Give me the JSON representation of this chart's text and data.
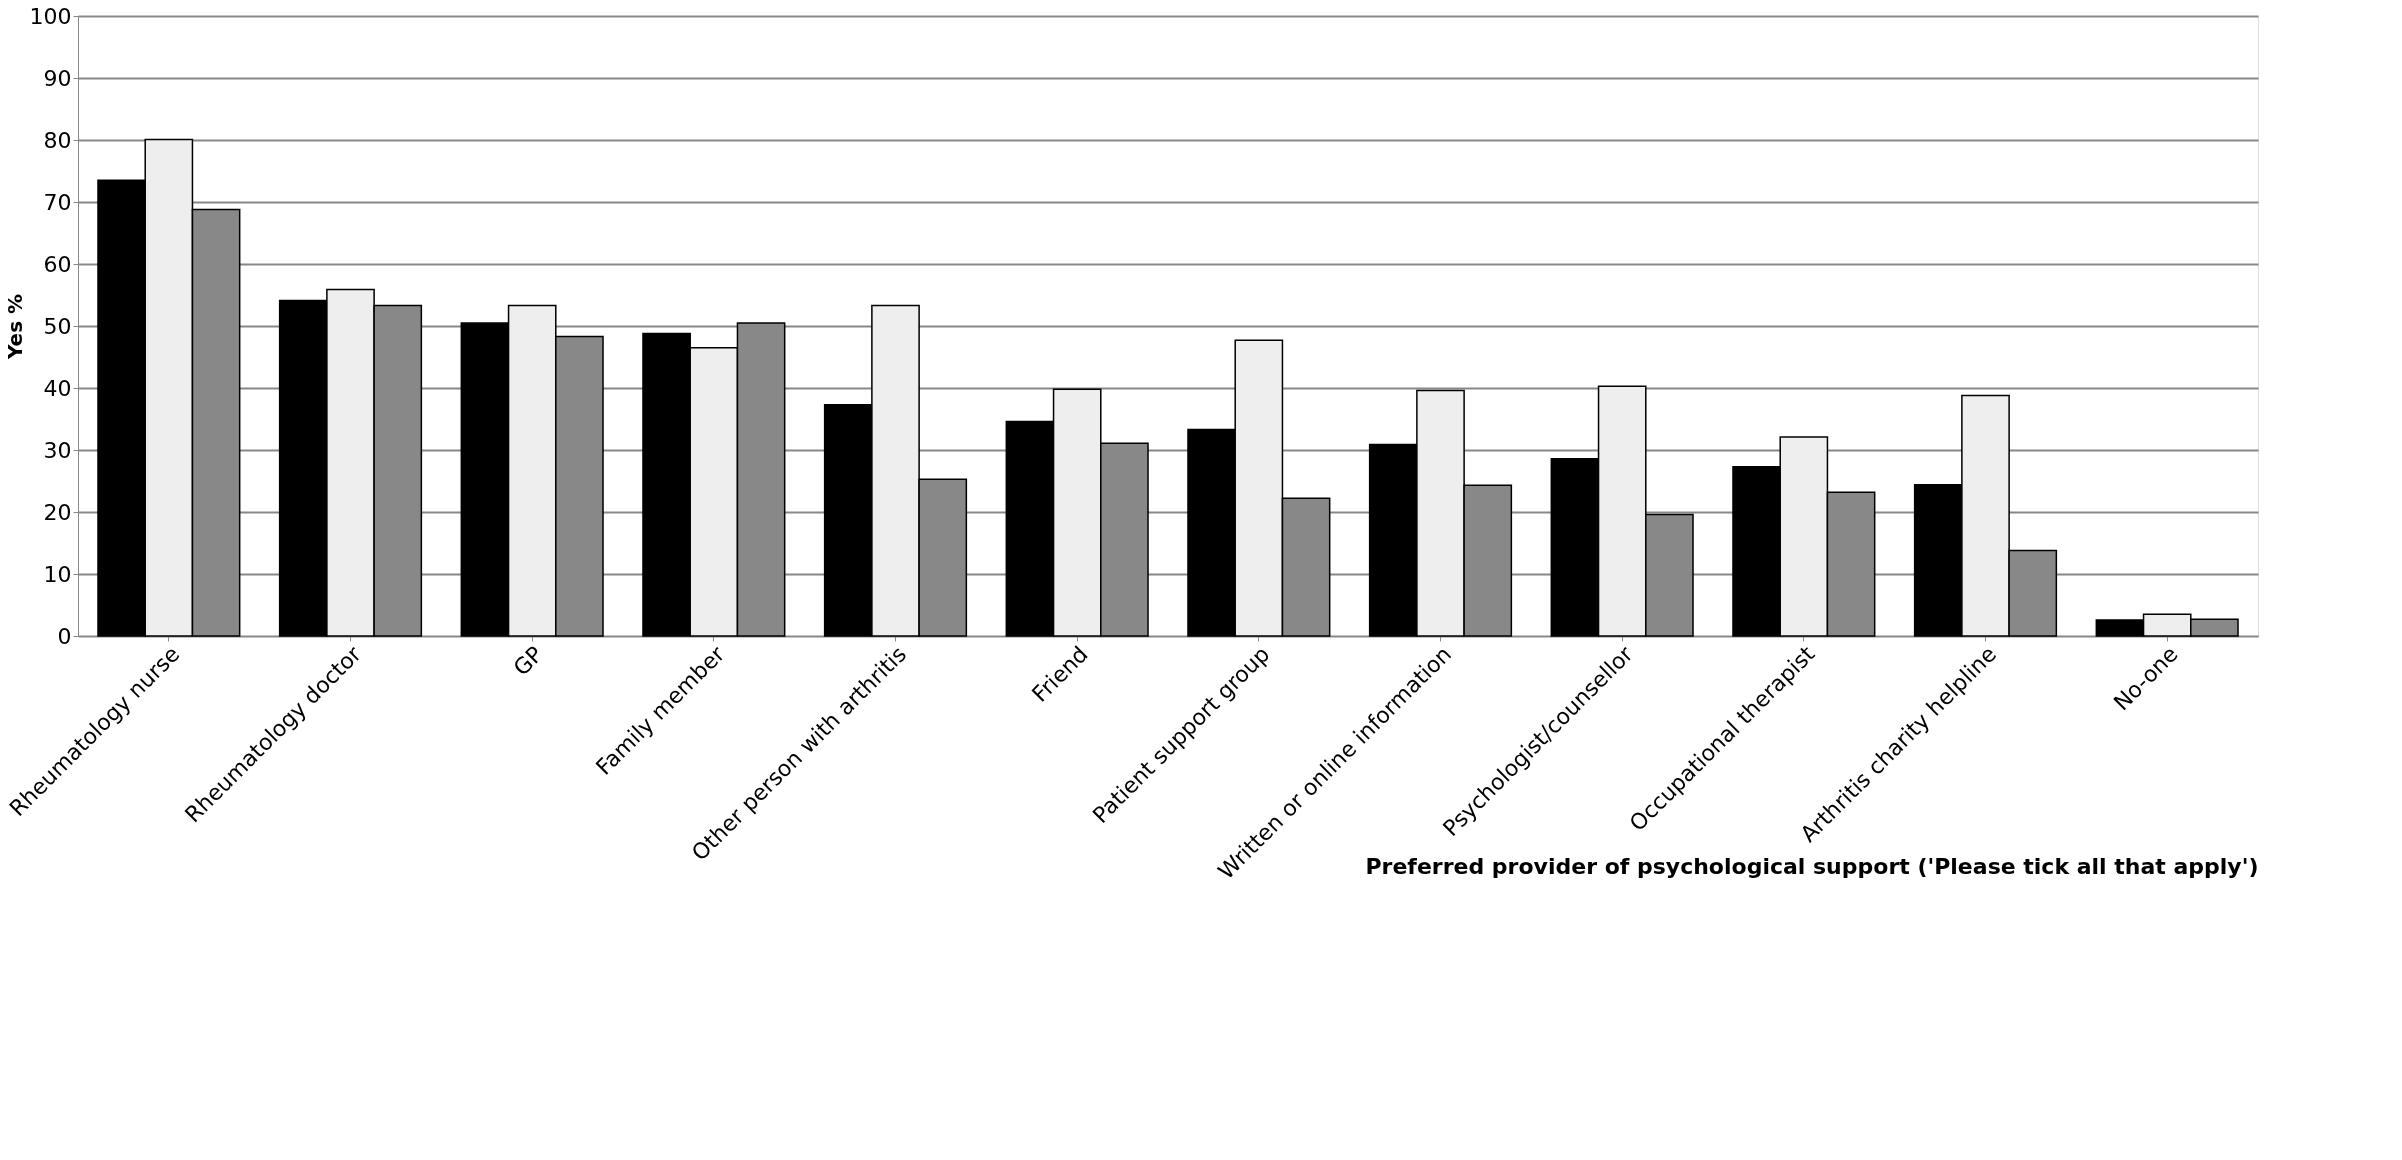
{
  "chart_data": {
    "type": "bar",
    "xlabel": "Preferred provider of psychological support  ('Please tick all that apply')",
    "ylabel": "Yes %",
    "categories": [
      "Rheumatology nurse",
      "Rheumatology doctor",
      "GP",
      "Family member",
      "Other person with arthritis",
      "Friend",
      "Patient support group",
      "Written or online information",
      "Psychologist/counsellor",
      "Occupational therapist",
      "Arthritis charity  helpline",
      "No-one"
    ],
    "series": [
      {
        "color": "#000000",
        "values": [
          73.5,
          54.1,
          50.5,
          48.8,
          37.3,
          34.6,
          33.3,
          30.9,
          28.6,
          27.3,
          24.4,
          2.6
        ]
      },
      {
        "color": "#eeeeee",
        "values": [
          80.1,
          55.9,
          53.3,
          46.5,
          53.3,
          39.8,
          47.7,
          39.6,
          40.3,
          32.1,
          38.8,
          3.5
        ]
      },
      {
        "color": "#888888",
        "values": [
          68.8,
          53.3,
          48.3,
          50.5,
          25.3,
          31.1,
          22.2,
          24.3,
          19.6,
          23.2,
          13.8,
          2.7
        ]
      }
    ],
    "ylim": [
      0,
      100
    ],
    "yticks": [
      0,
      10,
      20,
      30,
      40,
      50,
      60,
      70,
      80,
      90,
      100
    ],
    "grid": "y",
    "legend": false
  }
}
